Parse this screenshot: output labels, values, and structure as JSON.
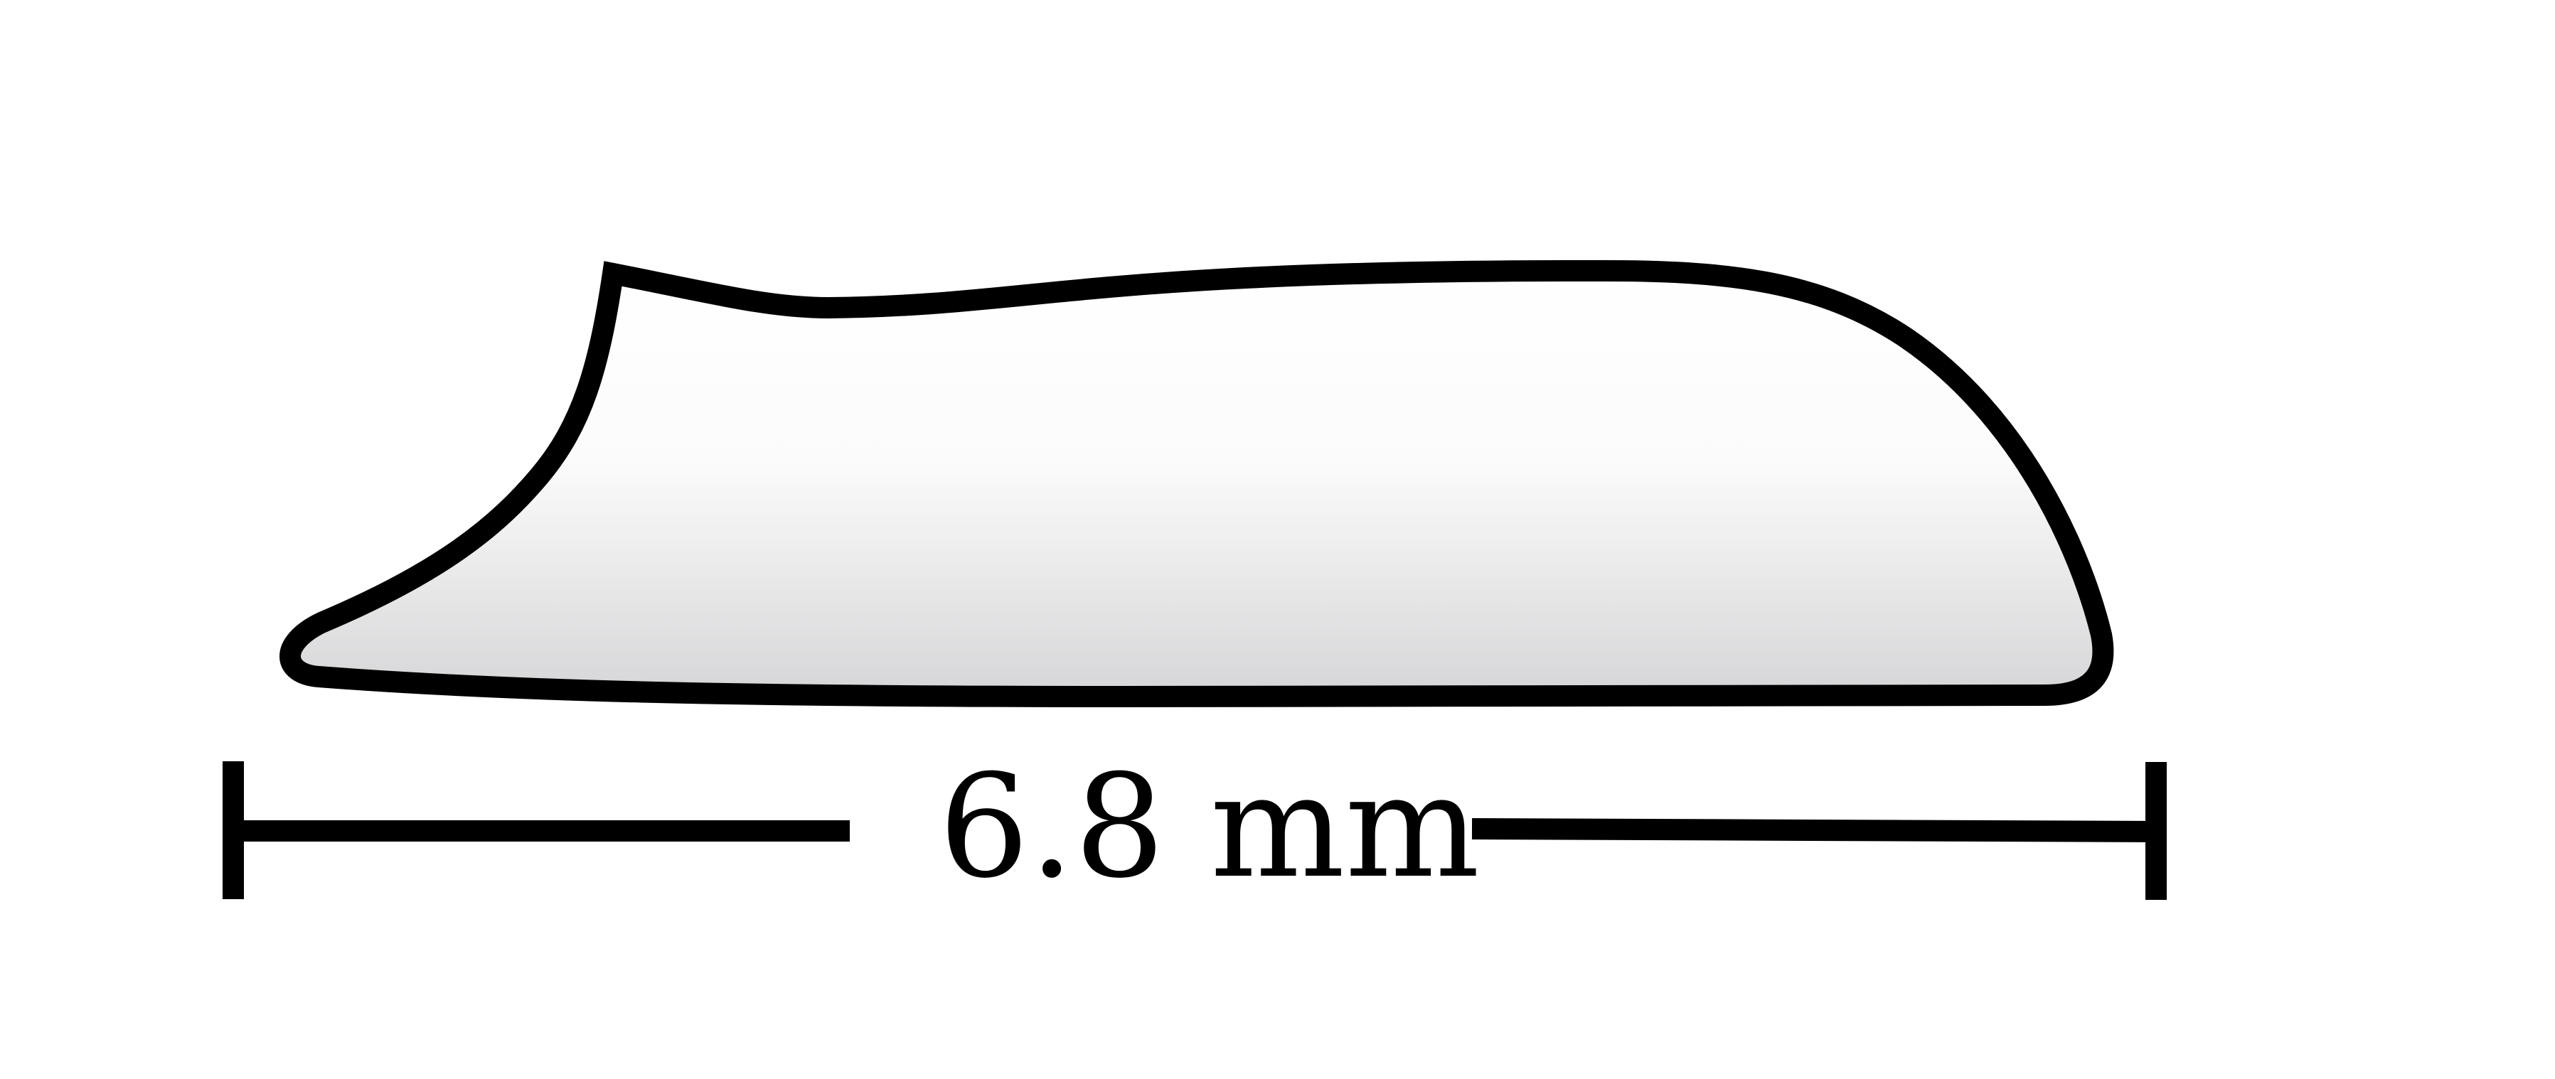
{
  "diagram": {
    "dimension_label": "6.8 mm"
  },
  "colors": {
    "stroke": "#000000",
    "fill_top": "#ffffff",
    "fill_bottom": "#d6d6d8",
    "background": "#ffffff"
  }
}
